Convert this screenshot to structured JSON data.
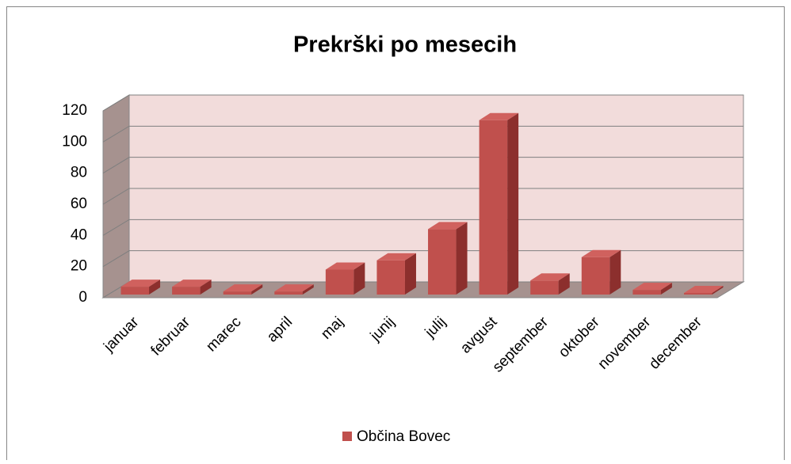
{
  "chart_data": {
    "type": "bar3d",
    "title": "Prekrški po mesecih",
    "categories": [
      "januar",
      "februar",
      "marec",
      "april",
      "maj",
      "junij",
      "julij",
      "avgust",
      "september",
      "oktober",
      "november",
      "december"
    ],
    "series": [
      {
        "name": "Občina Bovec",
        "color": "#c0504d",
        "values": [
          5,
          5,
          2,
          2,
          16,
          22,
          42,
          112,
          9,
          24,
          3,
          1
        ]
      }
    ],
    "ylim": [
      0,
      120
    ],
    "yticks": [
      0,
      20,
      40,
      60,
      80,
      100,
      120
    ],
    "grid": true,
    "legend": "bottom"
  }
}
